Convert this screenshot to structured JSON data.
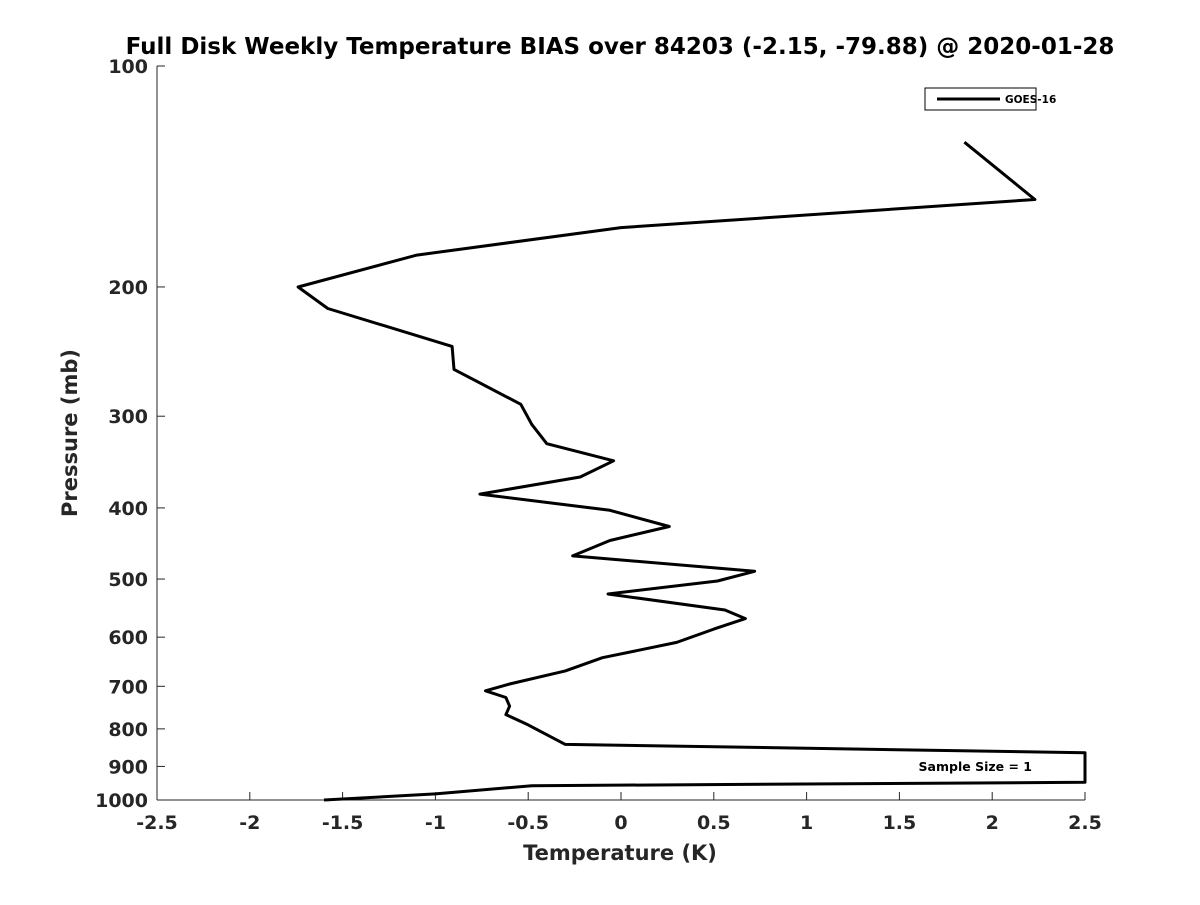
{
  "chart_data": {
    "type": "line",
    "title": "Full Disk Weekly Temperature BIAS over 84203 (-2.15, -79.88) @ 2020-01-28",
    "xlabel": "Temperature (K)",
    "ylabel": "Pressure (mb)",
    "xlim": [
      -2.5,
      2.5
    ],
    "ylim": [
      100,
      1000
    ],
    "y_scale": "log",
    "y_reversed": true,
    "x_ticks": [
      "-2.5",
      "-2",
      "-1.5",
      "-1",
      "-0.5",
      "0",
      "0.5",
      "1",
      "1.5",
      "2",
      "2.5"
    ],
    "y_ticks": [
      "100",
      "200",
      "300",
      "400",
      "500",
      "600",
      "700",
      "800",
      "900",
      "1000"
    ],
    "grid": false,
    "legend_position": "top-right",
    "annotation": "Sample Size = 1",
    "series": [
      {
        "name": "GOES-16",
        "color": "#000000",
        "x": [
          1.85,
          2.23,
          0.0,
          -1.1,
          -1.74,
          -1.58,
          -0.91,
          -0.9,
          -0.54,
          -0.48,
          -0.4,
          -0.04,
          -0.22,
          -0.76,
          -0.06,
          0.26,
          -0.06,
          -0.26,
          0.72,
          0.52,
          -0.07,
          0.56,
          0.67,
          0.5,
          0.3,
          -0.1,
          -0.3,
          -0.6,
          -0.73,
          -0.62,
          -0.6,
          -0.62,
          -0.5,
          -0.3,
          2.5,
          2.5,
          -0.48,
          -1.0,
          -1.6
        ],
        "y": [
          127,
          152,
          166,
          181,
          200,
          214,
          241,
          259,
          289,
          308,
          327,
          345,
          363,
          383,
          403,
          424,
          443,
          465,
          488,
          503,
          524,
          551,
          566,
          585,
          610,
          640,
          667,
          695,
          710,
          725,
          745,
          765,
          790,
          840,
          862,
          946,
          956,
          981,
          1000
        ]
      }
    ]
  }
}
